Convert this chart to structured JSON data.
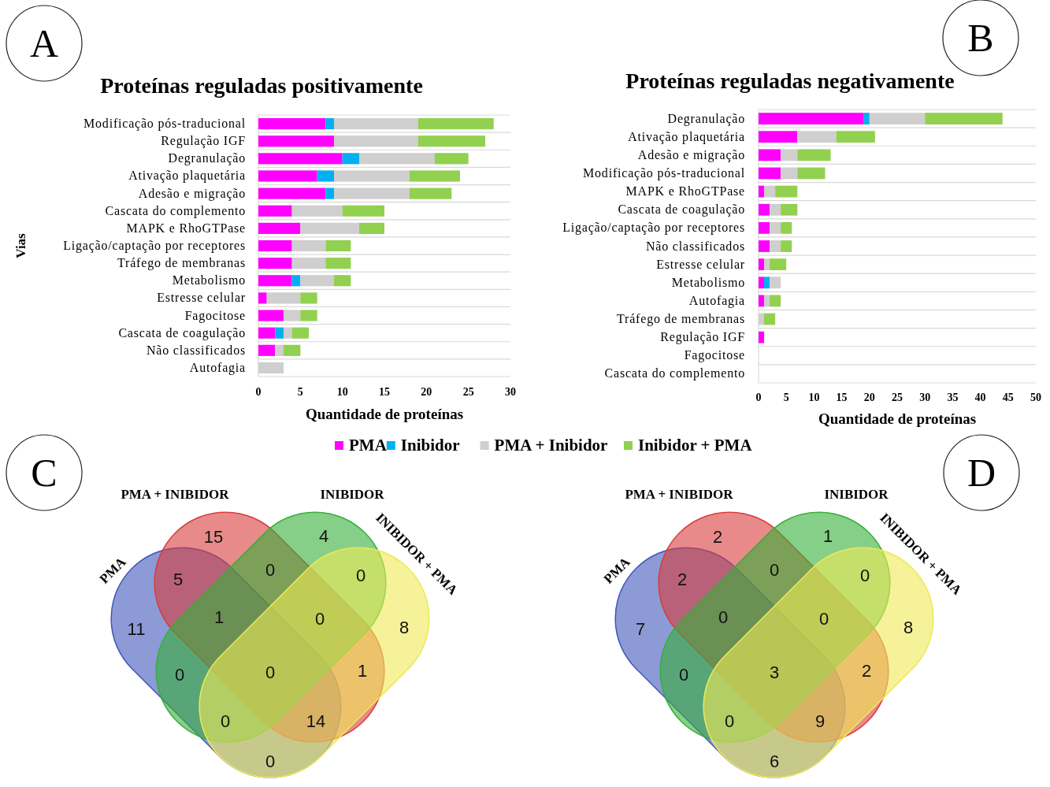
{
  "chart_data": [
    {
      "type": "bar",
      "orientation": "horizontal",
      "stacked": true,
      "title": "Proteínas reguladas positivamente",
      "xlabel": "Quantidade de proteínas",
      "ylabel": "Vias",
      "annotations": [
        "A"
      ],
      "categories": [
        "Modificação pós-traducional",
        "Regulação IGF",
        "Degranulação",
        "Ativação plaquetária",
        "Adesão e migração",
        "Cascata do complemento",
        "MAPK e RhoGTPase",
        "Ligação/captação por receptores",
        "Tráfego de membranas",
        "Metabolismo",
        "Estresse celular",
        "Fagocitose",
        "Cascata de coagulação",
        "Não classificados",
        "Autofagia"
      ],
      "series": [
        {
          "name": "PMA",
          "color": "#ff00ff",
          "values": [
            8,
            9,
            10,
            7,
            8,
            4,
            5,
            4,
            4,
            4,
            1,
            3,
            2,
            2,
            0
          ]
        },
        {
          "name": "Inibidor",
          "color": "#00b0f0",
          "values": [
            1,
            0,
            2,
            2,
            1,
            0,
            0,
            0,
            0,
            1,
            0,
            0,
            1,
            0,
            0
          ]
        },
        {
          "name": "PMA + Inibidor",
          "color": "#d0cece",
          "values": [
            10,
            10,
            9,
            9,
            9,
            6,
            7,
            4,
            4,
            4,
            4,
            2,
            1,
            1,
            3
          ]
        },
        {
          "name": "Inibidor + PMA",
          "color": "#92d050",
          "values": [
            9,
            8,
            4,
            6,
            5,
            5,
            3,
            3,
            3,
            2,
            2,
            2,
            2,
            2,
            0
          ]
        }
      ],
      "xlim": [
        0,
        30
      ],
      "xticks": [
        0,
        5,
        10,
        15,
        20,
        25,
        30
      ],
      "grid": "y",
      "legend": "bottom"
    },
    {
      "type": "bar",
      "orientation": "horizontal",
      "stacked": true,
      "title": "Proteínas reguladas negativamente",
      "xlabel": "Quantidade de proteínas",
      "annotations": [
        "B"
      ],
      "categories": [
        "Degranulação",
        "Ativação plaquetária",
        "Adesão e migração",
        "Modificação pós-traducional",
        "MAPK e RhoGTPase",
        "Cascata de coagulação",
        "Ligação/captação por receptores",
        "Não classificados",
        "Estresse celular",
        "Metabolismo",
        "Autofagia",
        "Tráfego  de membranas",
        "Regulação IGF",
        "Fagocitose",
        "Cascata do complemento"
      ],
      "series": [
        {
          "color": "#ff00ff",
          "values": [
            19,
            7,
            4,
            4,
            1,
            2,
            2,
            2,
            1,
            1,
            1,
            0,
            1,
            0,
            0
          ]
        },
        {
          "color": "#00b0f0",
          "values": [
            1,
            0,
            0,
            0,
            0,
            0,
            0,
            0,
            0,
            1,
            0,
            0,
            0,
            0,
            0
          ]
        },
        {
          "color": "#d0cece",
          "values": [
            10,
            7,
            3,
            3,
            2,
            2,
            2,
            2,
            1,
            2,
            1,
            1,
            0,
            0,
            0
          ]
        },
        {
          "color": "#92d050",
          "values": [
            14,
            7,
            6,
            5,
            4,
            3,
            2,
            2,
            3,
            0,
            2,
            2,
            0,
            0,
            0
          ]
        }
      ],
      "xlim": [
        0,
        50
      ],
      "xticks": [
        0,
        5,
        10,
        15,
        20,
        25,
        30,
        35,
        40,
        45,
        50
      ],
      "grid": "y"
    },
    {
      "type": "other",
      "annotations": [
        "C",
        "PMA",
        "PMA + INIBIDOR",
        "INIBIDOR",
        "INIBIDOR + PMA",
        "11",
        "15",
        "4",
        "8",
        "5",
        "0",
        "0",
        "0",
        "0",
        "1",
        "1",
        "0",
        "0",
        "14",
        "0"
      ]
    },
    {
      "type": "other",
      "annotations": [
        "D",
        "PMA",
        "PMA + INIBIDOR",
        "INIBIDOR",
        "INIBIDOR + PMA",
        "7",
        "2",
        "1",
        "8",
        "2",
        "0",
        "0",
        "6",
        "0",
        "2",
        "0",
        "0",
        "0",
        "9",
        "3"
      ]
    }
  ]
}
